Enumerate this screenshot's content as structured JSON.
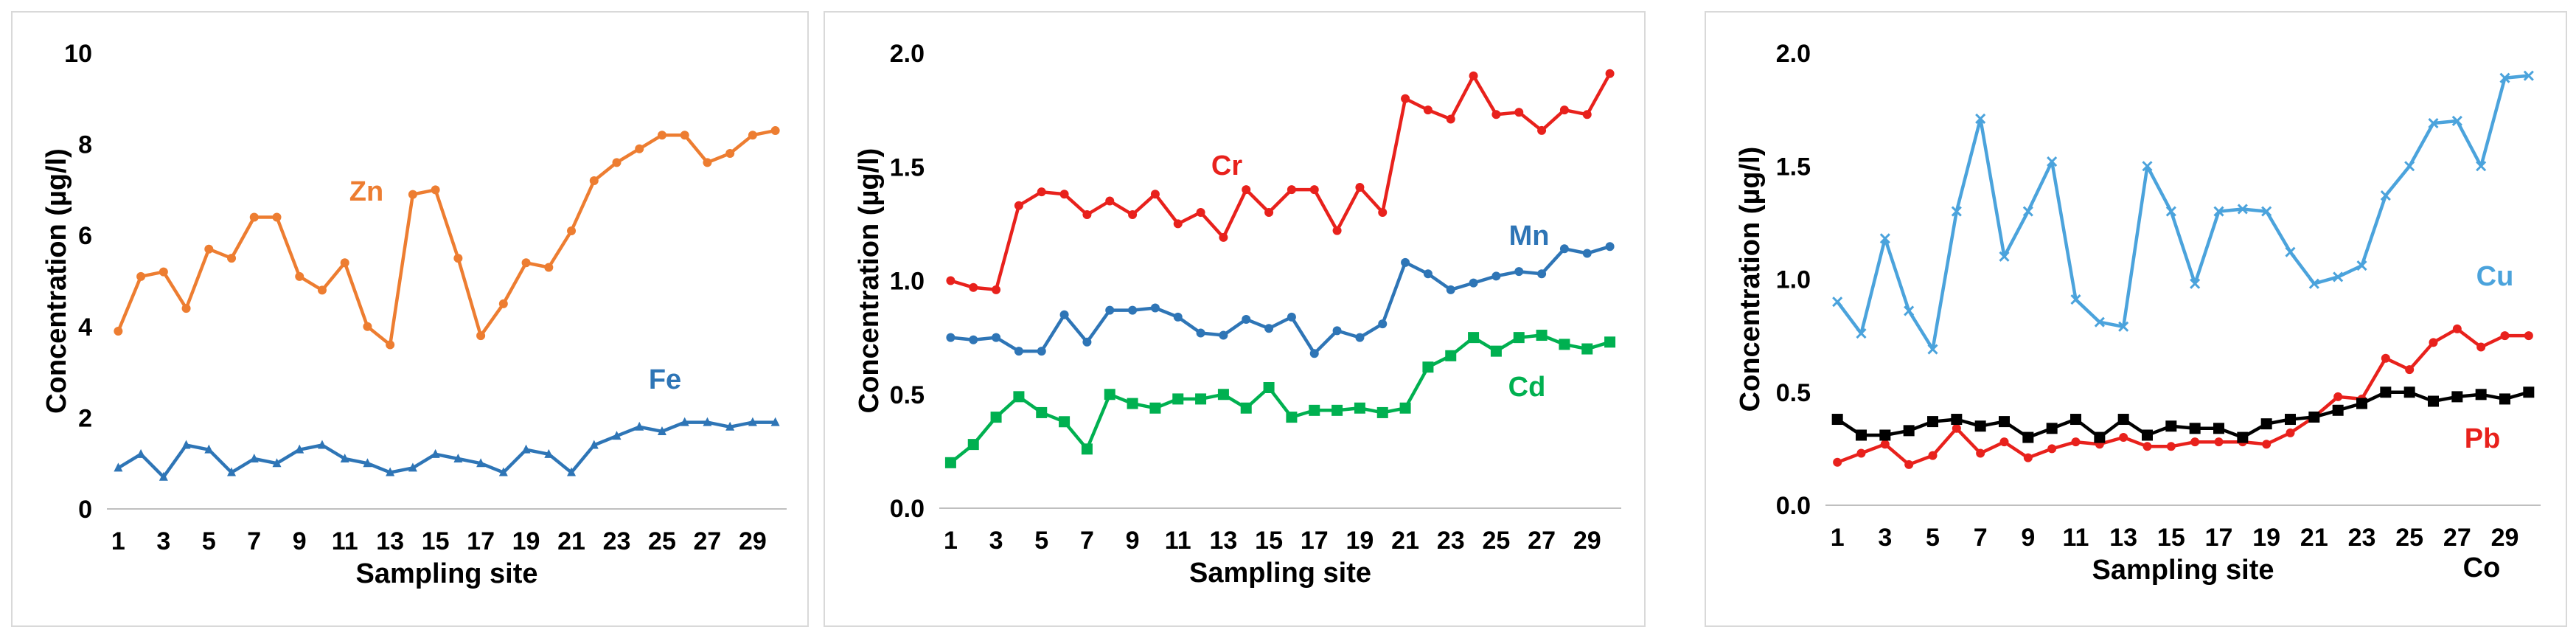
{
  "chart_data": [
    {
      "type": "line",
      "xlabel": "Sampling site",
      "ylabel": "Concentration (µg/l)",
      "x": [
        1,
        2,
        3,
        4,
        5,
        6,
        7,
        8,
        9,
        10,
        11,
        12,
        13,
        14,
        15,
        16,
        17,
        18,
        19,
        20,
        21,
        22,
        23,
        24,
        25,
        26,
        27,
        28,
        29,
        30
      ],
      "xticks": [
        1,
        3,
        5,
        7,
        9,
        11,
        13,
        15,
        17,
        19,
        21,
        23,
        25,
        27,
        29
      ],
      "ylim": [
        0,
        10
      ],
      "yticks": [
        "0",
        "2",
        "4",
        "6",
        "8",
        "10"
      ],
      "grid": false,
      "series": [
        {
          "name": "Zn",
          "color": "#ED7D31",
          "marker": "circle",
          "values": [
            3.9,
            5.1,
            5.2,
            4.4,
            5.7,
            5.5,
            6.4,
            6.4,
            5.1,
            4.8,
            5.4,
            4.0,
            3.6,
            6.9,
            7.0,
            5.5,
            3.8,
            4.5,
            5.4,
            5.3,
            6.1,
            7.2,
            7.6,
            7.9,
            8.2,
            8.2,
            7.6,
            7.8,
            8.2,
            8.3
          ]
        },
        {
          "name": "Fe",
          "color": "#2E75B6",
          "marker": "triangle",
          "values": [
            0.9,
            1.2,
            0.7,
            1.4,
            1.3,
            0.8,
            1.1,
            1.0,
            1.3,
            1.4,
            1.1,
            1.0,
            0.8,
            0.9,
            1.2,
            1.1,
            1.0,
            0.8,
            1.3,
            1.2,
            0.8,
            1.4,
            1.6,
            1.8,
            1.7,
            1.9,
            1.9,
            1.8,
            1.9,
            1.9
          ]
        }
      ]
    },
    {
      "type": "line",
      "xlabel": "Sampling site",
      "ylabel": "Concentration (µg/l)",
      "x": [
        1,
        2,
        3,
        4,
        5,
        6,
        7,
        8,
        9,
        10,
        11,
        12,
        13,
        14,
        15,
        16,
        17,
        18,
        19,
        20,
        21,
        22,
        23,
        24,
        25,
        26,
        27,
        28,
        29,
        30
      ],
      "xticks": [
        1,
        3,
        5,
        7,
        9,
        11,
        13,
        15,
        17,
        19,
        21,
        23,
        25,
        27,
        29
      ],
      "ylim": [
        0,
        2.0
      ],
      "yticks": [
        "0.0",
        "0.5",
        "1.0",
        "1.5",
        "2.0"
      ],
      "grid": false,
      "series": [
        {
          "name": "Cr",
          "color": "#E8211C",
          "marker": "circle",
          "values": [
            1.0,
            0.97,
            0.96,
            1.33,
            1.39,
            1.38,
            1.29,
            1.35,
            1.29,
            1.38,
            1.25,
            1.3,
            1.19,
            1.4,
            1.3,
            1.4,
            1.4,
            1.22,
            1.41,
            1.3,
            1.8,
            1.75,
            1.71,
            1.9,
            1.73,
            1.74,
            1.66,
            1.75,
            1.73,
            1.91
          ]
        },
        {
          "name": "Mn",
          "color": "#2E75B6",
          "marker": "circle",
          "values": [
            0.75,
            0.74,
            0.75,
            0.69,
            0.69,
            0.85,
            0.73,
            0.87,
            0.87,
            0.88,
            0.84,
            0.77,
            0.76,
            0.83,
            0.79,
            0.84,
            0.68,
            0.78,
            0.75,
            0.81,
            1.08,
            1.03,
            0.96,
            0.99,
            1.02,
            1.04,
            1.03,
            1.14,
            1.12,
            1.15
          ]
        },
        {
          "name": "Cd",
          "color": "#00B050",
          "marker": "square",
          "values": [
            0.2,
            0.28,
            0.4,
            0.49,
            0.42,
            0.38,
            0.26,
            0.5,
            0.46,
            0.44,
            0.48,
            0.48,
            0.5,
            0.44,
            0.53,
            0.4,
            0.43,
            0.43,
            0.44,
            0.42,
            0.44,
            0.62,
            0.67,
            0.75,
            0.69,
            0.75,
            0.76,
            0.72,
            0.7,
            0.73
          ]
        }
      ]
    },
    {
      "type": "line",
      "xlabel": "Sampling site",
      "ylabel": "Concentration (µg/l)",
      "x": [
        1,
        2,
        3,
        4,
        5,
        6,
        7,
        8,
        9,
        10,
        11,
        12,
        13,
        14,
        15,
        16,
        17,
        18,
        19,
        20,
        21,
        22,
        23,
        24,
        25,
        26,
        27,
        28,
        29,
        30
      ],
      "xticks": [
        1,
        3,
        5,
        7,
        9,
        11,
        13,
        15,
        17,
        19,
        21,
        23,
        25,
        27,
        29
      ],
      "ylim": [
        0,
        2.0
      ],
      "yticks": [
        "0.0",
        "0.5",
        "1.0",
        "1.5",
        "2.0"
      ],
      "grid": false,
      "series": [
        {
          "name": "Cu",
          "color": "#4BA3DC",
          "marker": "x",
          "values": [
            0.9,
            0.76,
            1.18,
            0.86,
            0.69,
            1.3,
            1.71,
            1.1,
            1.3,
            1.52,
            0.91,
            0.81,
            0.79,
            1.5,
            1.3,
            0.98,
            1.3,
            1.31,
            1.3,
            1.12,
            0.98,
            1.01,
            1.06,
            1.37,
            1.5,
            1.69,
            1.7,
            1.5,
            1.89,
            1.9
          ]
        },
        {
          "name": "Pb",
          "color": "#E8211C",
          "marker": "circle",
          "values": [
            0.19,
            0.23,
            0.27,
            0.18,
            0.22,
            0.34,
            0.23,
            0.28,
            0.21,
            0.25,
            0.28,
            0.27,
            0.3,
            0.26,
            0.26,
            0.28,
            0.28,
            0.28,
            0.27,
            0.32,
            0.39,
            0.48,
            0.47,
            0.65,
            0.6,
            0.72,
            0.78,
            0.7,
            0.75,
            0.75
          ]
        },
        {
          "name": "Co",
          "color": "#000000",
          "marker": "square",
          "values": [
            0.38,
            0.31,
            0.31,
            0.33,
            0.37,
            0.38,
            0.35,
            0.37,
            0.3,
            0.34,
            0.38,
            0.3,
            0.38,
            0.31,
            0.35,
            0.34,
            0.34,
            0.3,
            0.36,
            0.38,
            0.39,
            0.42,
            0.45,
            0.5,
            0.5,
            0.46,
            0.48,
            0.49,
            0.47,
            0.5
          ]
        }
      ]
    }
  ]
}
